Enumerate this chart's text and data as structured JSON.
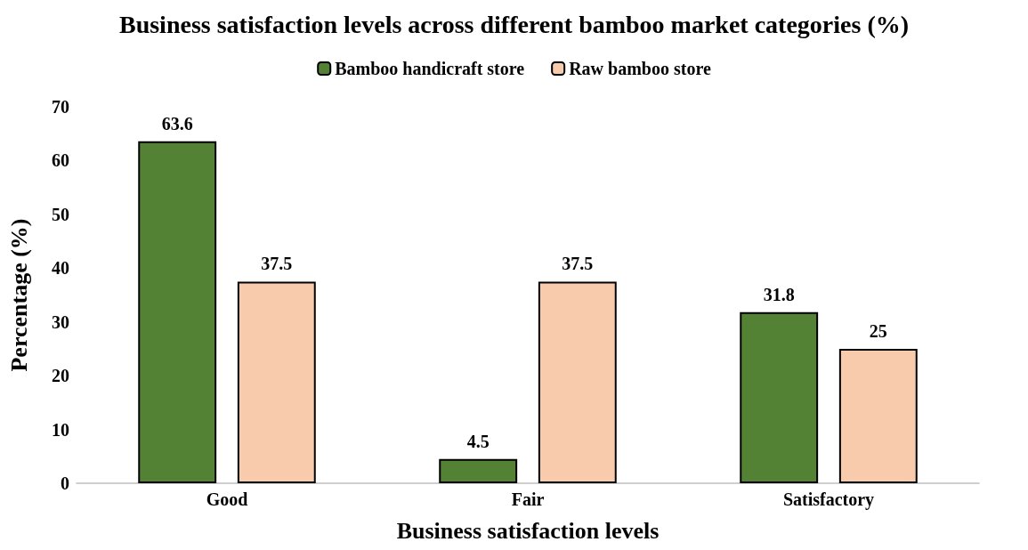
{
  "chart_data": {
    "type": "bar",
    "title": "Business satisfaction levels across different bamboo market categories (%)",
    "xlabel": "Business satisfaction levels",
    "ylabel": "Percentage (%)",
    "categories": [
      "Good",
      "Fair",
      "Satisfactory"
    ],
    "series": [
      {
        "name": "Bamboo handicraft store",
        "color": "#548235",
        "values": [
          63.6,
          4.5,
          31.8
        ]
      },
      {
        "name": "Raw bamboo store",
        "color": "#f8cbad",
        "values": [
          37.5,
          37.5,
          25
        ]
      }
    ],
    "ylim": [
      0,
      70
    ],
    "yticks": [
      0,
      10,
      20,
      30,
      40,
      50,
      60,
      70
    ],
    "grid": false,
    "legend": "top",
    "data_labels": true
  }
}
